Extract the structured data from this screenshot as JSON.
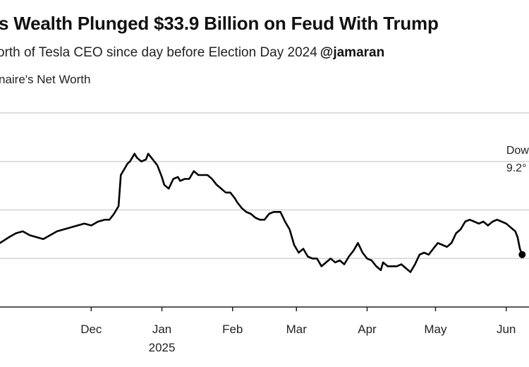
{
  "header": {
    "title": "s Wealth Plunged $33.9 Billion on Feud With Trump",
    "subtitle": "orth of Tesla CEO since day before Election Day 2024",
    "handle": "@jamaran",
    "series_label": "naire's Net Worth"
  },
  "chart_data": {
    "type": "line",
    "title": "s Wealth Plunged $33.9 Billion on Feud With Trump",
    "subtitle": "orth of Tesla CEO since day before Election Day 2024",
    "ylabel": "naire's Net Worth",
    "xlabel": "",
    "grid": true,
    "x_range": [
      -10,
      222
    ],
    "ylim": [
      0,
      100
    ],
    "x_ticks": [
      {
        "x": 30,
        "label": "Dec",
        "sublabel": ""
      },
      {
        "x": 61,
        "label": "Jan",
        "sublabel": "2025"
      },
      {
        "x": 92,
        "label": "Feb",
        "sublabel": ""
      },
      {
        "x": 120,
        "label": "Mar",
        "sublabel": ""
      },
      {
        "x": 151,
        "label": "Apr",
        "sublabel": ""
      },
      {
        "x": 181,
        "label": "May",
        "sublabel": ""
      },
      {
        "x": 212,
        "label": "Jun",
        "sublabel": ""
      }
    ],
    "y_gridlines": [
      25,
      50,
      75,
      100
    ],
    "series": [
      {
        "name": "Net worth",
        "color": "#000000",
        "x": [
          -10,
          -6,
          -3,
          0,
          3,
          6,
          9,
          12,
          15,
          18,
          21,
          24,
          27,
          30,
          33,
          36,
          38,
          40,
          42,
          43,
          45,
          46,
          47,
          48,
          49,
          50,
          52,
          54,
          55,
          57,
          59,
          61,
          62,
          64,
          66,
          68,
          69,
          71,
          73,
          75,
          77,
          79,
          81,
          83,
          85,
          87,
          89,
          91,
          93,
          94,
          96,
          98,
          100,
          102,
          104,
          106,
          108,
          110,
          112,
          113,
          115,
          117,
          119,
          121,
          123,
          125,
          127,
          129,
          131,
          133,
          135,
          137,
          139,
          141,
          143,
          145,
          147,
          149,
          151,
          153,
          155,
          157,
          158,
          160,
          162,
          164,
          166,
          168,
          170,
          172,
          174,
          176,
          178,
          180,
          182,
          184,
          186,
          188,
          190,
          192,
          194,
          196,
          198,
          200,
          202,
          204,
          206,
          208,
          210,
          212,
          214,
          216,
          217,
          218,
          219
        ],
        "values": [
          33,
          36,
          38,
          39,
          37,
          36,
          35,
          37,
          39,
          40,
          41,
          42,
          43,
          42,
          44,
          45,
          45,
          48,
          52,
          68,
          72,
          74,
          75,
          77,
          79,
          77,
          75,
          76,
          79,
          76,
          73,
          67,
          63,
          61,
          66,
          67,
          65,
          66,
          66,
          70,
          68,
          68,
          68,
          66,
          63,
          61,
          59,
          59,
          56,
          54,
          51,
          49,
          48,
          46,
          45,
          45,
          48,
          49,
          49,
          49,
          44,
          40,
          32,
          28,
          30,
          26,
          25,
          25,
          21,
          23,
          25,
          23,
          24,
          22,
          26,
          29,
          33,
          28,
          25,
          24,
          21,
          19,
          23,
          21,
          21,
          21,
          22,
          20,
          18,
          22,
          27,
          28,
          27,
          30,
          33,
          32,
          31,
          33,
          38,
          40,
          44,
          45,
          44,
          43,
          44,
          42,
          44,
          45,
          44,
          43,
          41,
          39,
          36,
          30,
          27
        ]
      }
    ],
    "annotations": [
      {
        "text": "Dow",
        "x": 217
      },
      {
        "text": "9.2°",
        "x": 217
      }
    ],
    "endpoint": {
      "x": 219,
      "y": 27
    }
  }
}
